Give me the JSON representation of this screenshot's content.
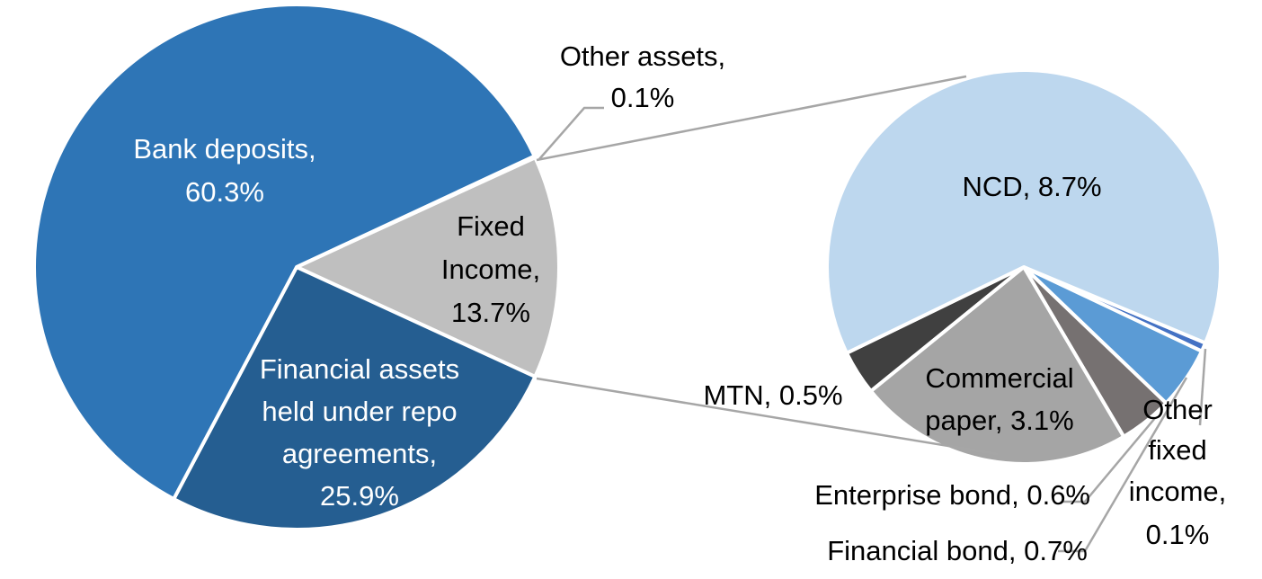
{
  "chart_data": {
    "type": "pie-of-pie",
    "primary": {
      "slices": [
        {
          "label": "Other assets",
          "value": 0.1,
          "text": [
            "Other assets,",
            "0.1%"
          ],
          "color": "#2E75B6"
        },
        {
          "label": "Fixed Income",
          "value": 13.7,
          "text": [
            "Fixed",
            "Income,",
            "13.7%"
          ],
          "color": "#BFBFBF"
        },
        {
          "label": "Financial assets held under repo agreements",
          "value": 25.9,
          "text": [
            "Financial assets",
            "held under repo",
            "agreements,",
            "25.9%"
          ],
          "color": "#255E91"
        },
        {
          "label": "Bank deposits",
          "value": 60.3,
          "text": [
            "Bank deposits,",
            "60.3%"
          ],
          "color": "#2E75B6"
        }
      ]
    },
    "secondary": {
      "slices": [
        {
          "label": "Other fixed income",
          "value": 0.1,
          "text": [
            "Other",
            "fixed",
            "income,",
            "0.1%"
          ],
          "color": "#4472C4"
        },
        {
          "label": "Financial bond",
          "value": 0.7,
          "text": [
            "Financial bond, 0.7%"
          ],
          "color": "#5B9BD5"
        },
        {
          "label": "Enterprise bond",
          "value": 0.6,
          "text": [
            "Enterprise bond, 0.6%"
          ],
          "color": "#767171"
        },
        {
          "label": "Commercial paper",
          "value": 3.1,
          "text": [
            "Commercial",
            "paper, 3.1%"
          ],
          "color": "#A5A5A5"
        },
        {
          "label": "MTN",
          "value": 0.5,
          "text": [
            "MTN, 0.5%"
          ],
          "color": "#404040"
        },
        {
          "label": "NCD",
          "value": 8.7,
          "text": [
            "NCD, 8.7%"
          ],
          "color": "#BDD7EE"
        }
      ]
    }
  }
}
